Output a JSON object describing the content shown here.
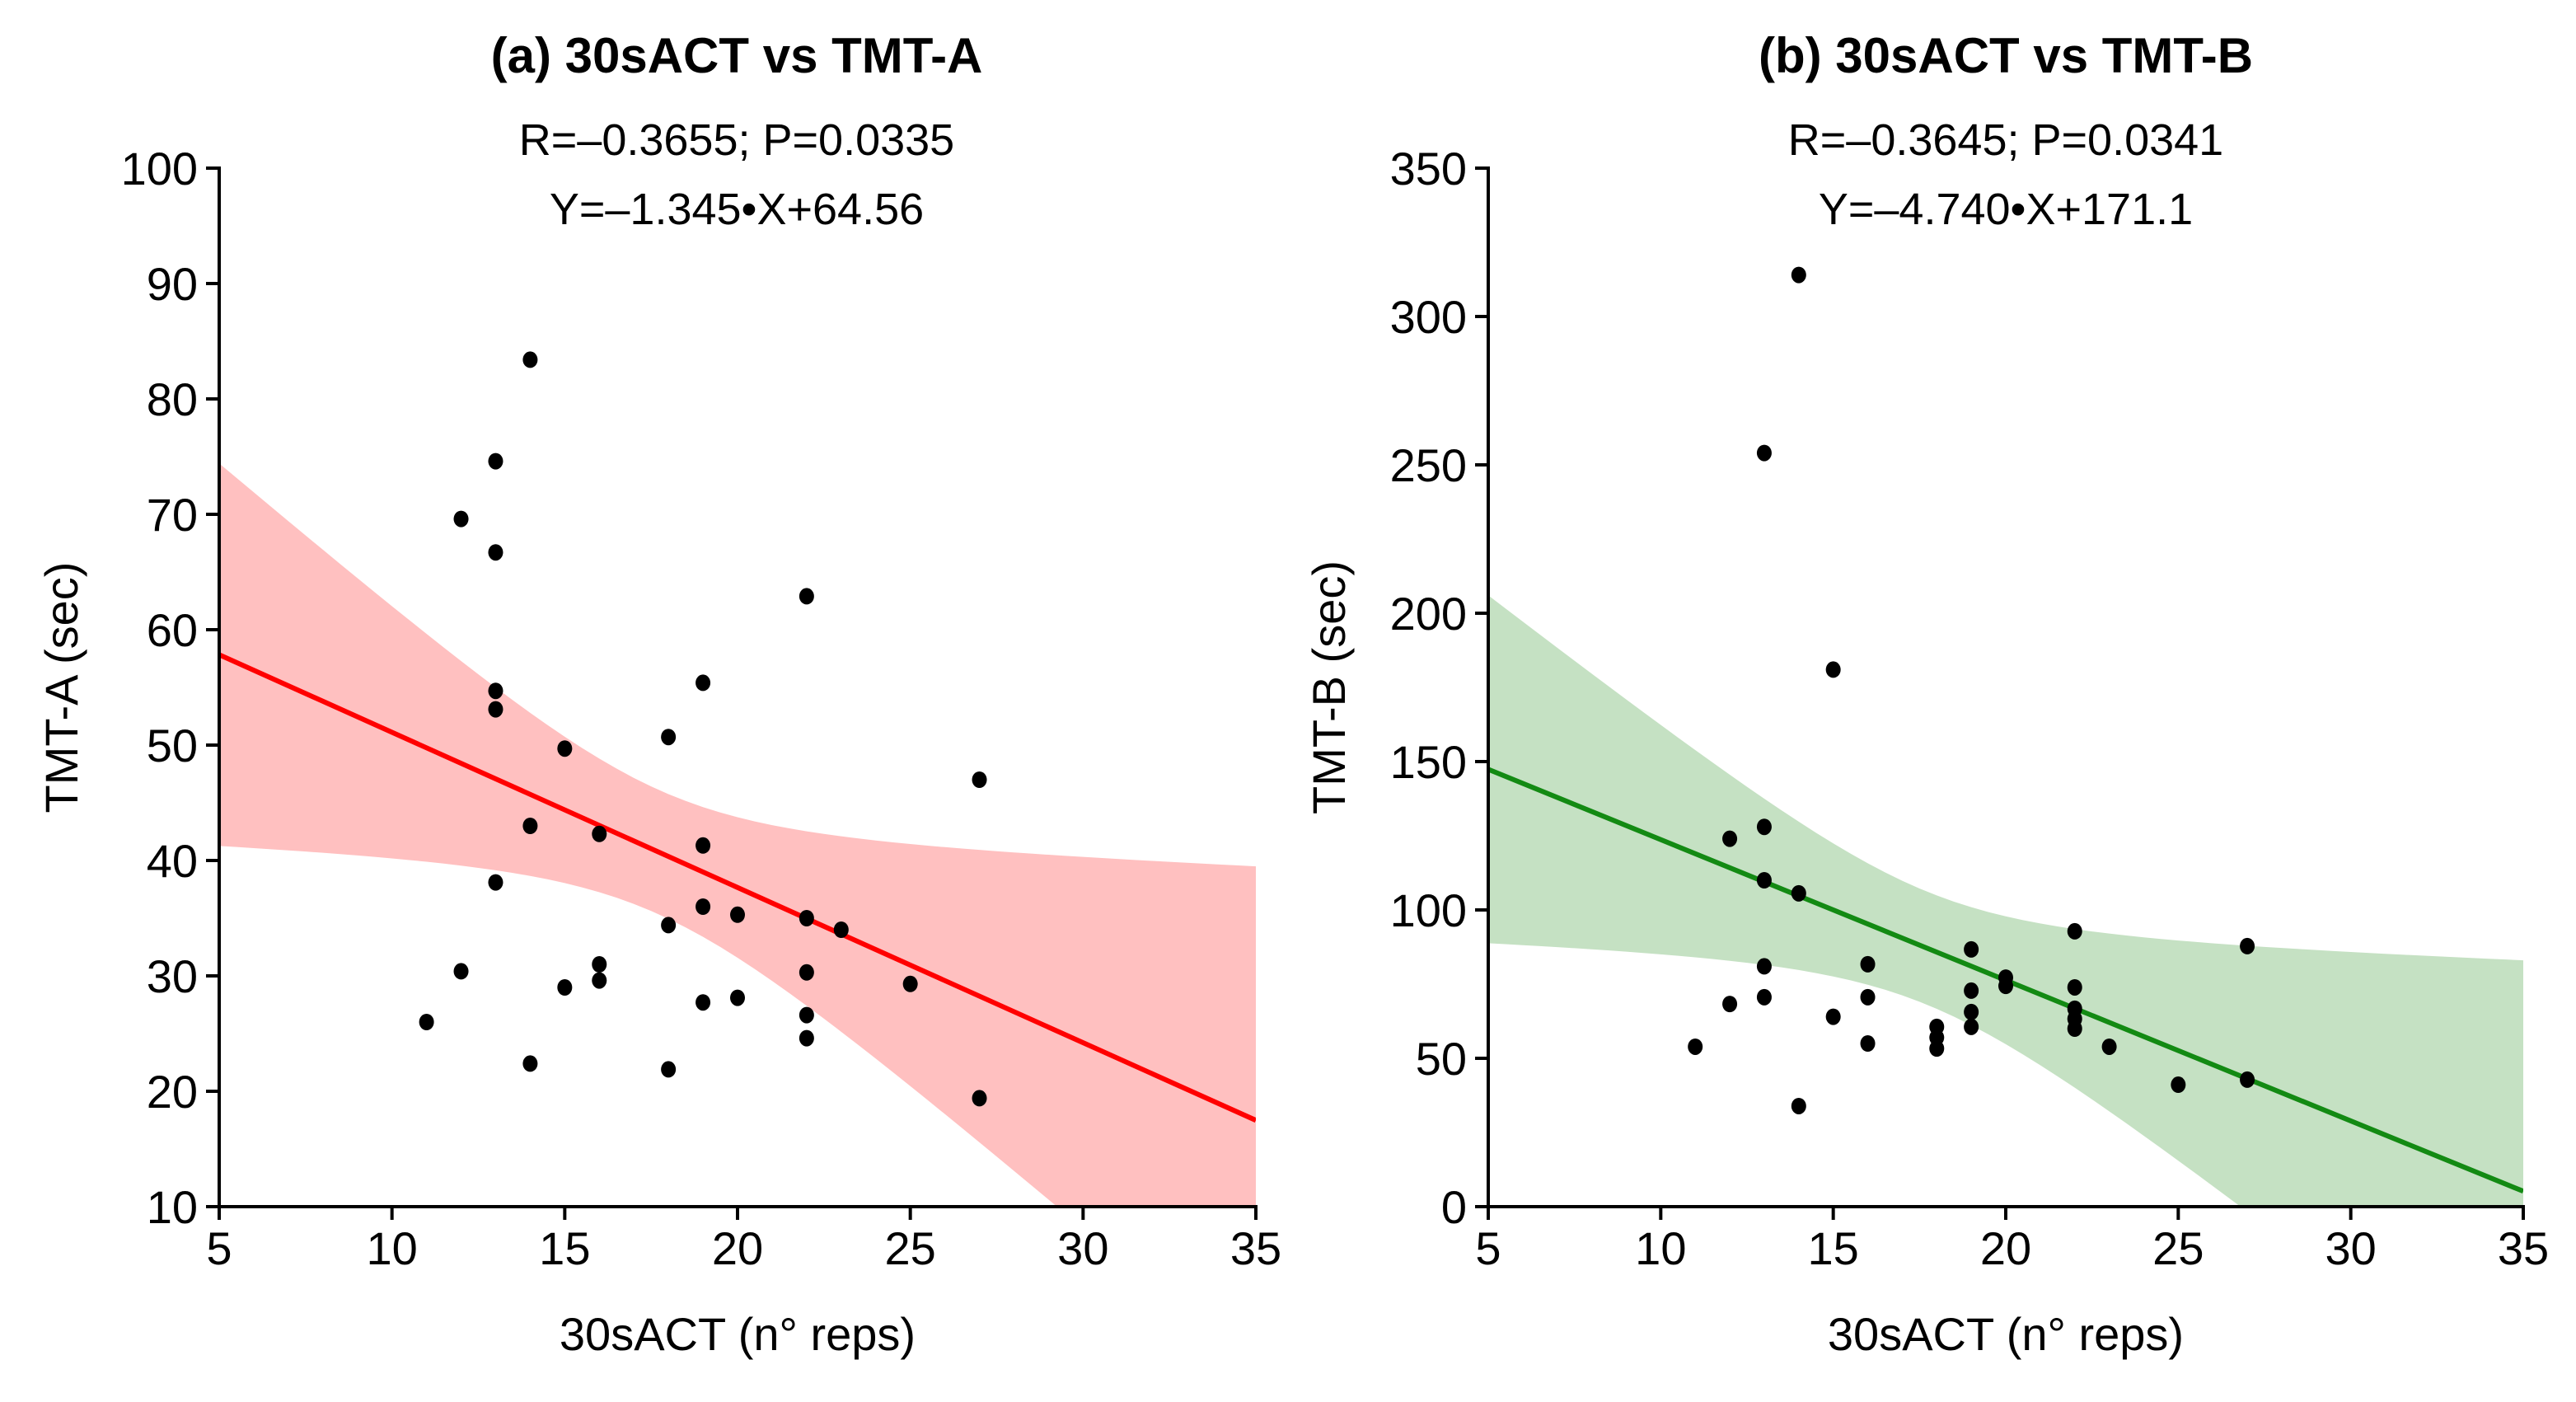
{
  "chart_data": [
    {
      "type": "scatter",
      "title": "(a) 30sACT vs TMT-A",
      "stats_line1": "R=–0.3655; P=0.0335",
      "stats_line2": "Y=–1.345•X+64.56",
      "xlabel": "30sACT (n° reps)",
      "ylabel": "TMT-A (sec)",
      "xlim": [
        5,
        35
      ],
      "ylim": [
        10,
        100
      ],
      "xticks": [
        5,
        10,
        15,
        20,
        25,
        30,
        35
      ],
      "yticks": [
        10,
        20,
        30,
        40,
        50,
        60,
        70,
        80,
        90,
        100
      ],
      "regression": {
        "slope": -1.345,
        "intercept": 64.56
      },
      "confidence_band": true,
      "line_color": "#ff0000",
      "band_color": "#ffc0c0",
      "points": [
        [
          11,
          26
        ],
        [
          12,
          30.4
        ],
        [
          12,
          69.6
        ],
        [
          13,
          74.6
        ],
        [
          13,
          66.7
        ],
        [
          13,
          54.7
        ],
        [
          13,
          53.1
        ],
        [
          13,
          38.1
        ],
        [
          14,
          83.4
        ],
        [
          14,
          43
        ],
        [
          14,
          22.4
        ],
        [
          15,
          49.7
        ],
        [
          15,
          29
        ],
        [
          16,
          42.3
        ],
        [
          16,
          31
        ],
        [
          16,
          29.6
        ],
        [
          18,
          50.7
        ],
        [
          18,
          34.4
        ],
        [
          18,
          21.9
        ],
        [
          19,
          55.4
        ],
        [
          19,
          41.3
        ],
        [
          19,
          36
        ],
        [
          19,
          27.7
        ],
        [
          20,
          35.3
        ],
        [
          20,
          28.1
        ],
        [
          22,
          62.9
        ],
        [
          22,
          35
        ],
        [
          22,
          30.3
        ],
        [
          22,
          26.6
        ],
        [
          22,
          24.6
        ],
        [
          23,
          34
        ],
        [
          25,
          29.3
        ],
        [
          27,
          47
        ],
        [
          27,
          19.4
        ]
      ]
    },
    {
      "type": "scatter",
      "title": "(b) 30sACT vs TMT-B",
      "stats_line1": "R=–0.3645; P=0.0341",
      "stats_line2": "Y=–4.740•X+171.1",
      "xlabel": "30sACT (n° reps)",
      "ylabel": "TMT-B (sec)",
      "xlim": [
        5,
        35
      ],
      "ylim": [
        0,
        350
      ],
      "xticks": [
        5,
        10,
        15,
        20,
        25,
        30,
        35
      ],
      "yticks": [
        0,
        50,
        100,
        150,
        200,
        250,
        300,
        350
      ],
      "regression": {
        "slope": -4.74,
        "intercept": 171.1
      },
      "confidence_band": true,
      "line_color": "#138a13",
      "band_color": "#c5e1c3",
      "points": [
        [
          11,
          53.9
        ],
        [
          12,
          68.3
        ],
        [
          12,
          124
        ],
        [
          13,
          254
        ],
        [
          13,
          128
        ],
        [
          13,
          110
        ],
        [
          13,
          81
        ],
        [
          13,
          70.6
        ],
        [
          14,
          314
        ],
        [
          14,
          105.6
        ],
        [
          14,
          33.9
        ],
        [
          15,
          181
        ],
        [
          15,
          64
        ],
        [
          16,
          81.7
        ],
        [
          16,
          70.6
        ],
        [
          16,
          55
        ],
        [
          18,
          60.6
        ],
        [
          18,
          57
        ],
        [
          18,
          53.3
        ],
        [
          19,
          86.7
        ],
        [
          19,
          72.8
        ],
        [
          19,
          65.6
        ],
        [
          19,
          60.6
        ],
        [
          20,
          77.2
        ],
        [
          20,
          74.4
        ],
        [
          22,
          92.8
        ],
        [
          22,
          73.9
        ],
        [
          22,
          66.7
        ],
        [
          22,
          63.3
        ],
        [
          22,
          60
        ],
        [
          23,
          53.9
        ],
        [
          25,
          41.1
        ],
        [
          27,
          87.8
        ],
        [
          27,
          42.8
        ]
      ]
    }
  ]
}
